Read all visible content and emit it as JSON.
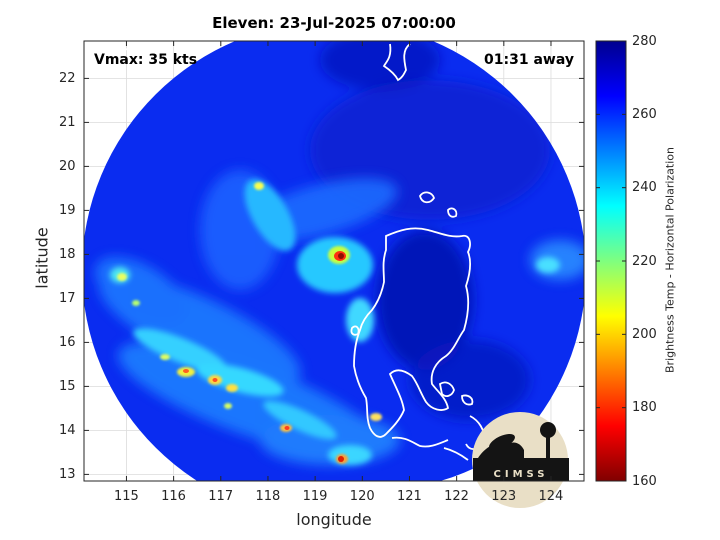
{
  "title": "Eleven: 23-Jul-2025 07:00:00",
  "vmax_label": "Vmax: 35 kts",
  "time_away_label": "01:31 away",
  "xlabel": "longitude",
  "ylabel": "latitude",
  "colorbar": {
    "label": "Brightness Temp - Horizontal Polarization",
    "ticks": [
      "160",
      "180",
      "200",
      "220",
      "240",
      "260",
      "280"
    ],
    "range": [
      160,
      280
    ],
    "colormap": "jet"
  },
  "x_ticks": [
    "115",
    "116",
    "117",
    "118",
    "119",
    "120",
    "121",
    "122",
    "123",
    "124"
  ],
  "y_ticks": [
    "13",
    "14",
    "15",
    "16",
    "17",
    "18",
    "19",
    "20",
    "21",
    "22"
  ],
  "logo_text": "CIMSS",
  "colors": {
    "background": "#0a2cf0",
    "ocean_pass_edge": "#ffffff",
    "coastline": "#ffffff"
  },
  "chart_data": {
    "type": "heatmap",
    "title": "Eleven: 23-Jul-2025 07:00:00",
    "xlabel": "longitude",
    "ylabel": "latitude",
    "xlim": [
      114.1,
      124.7
    ],
    "ylim": [
      12.85,
      22.85
    ],
    "value_label": "Brightness Temp - Horizontal Polarization",
    "value_range": [
      160,
      280
    ],
    "storm_center": {
      "lon": 119.4,
      "lat": 17.95,
      "min_temp": 172
    },
    "features": [
      {
        "name": "core",
        "lon": 119.4,
        "lat": 17.95,
        "temp": 172
      },
      {
        "name": "band-1",
        "lon": 115.9,
        "lat": 15.6,
        "temp": 200
      },
      {
        "name": "band-2",
        "lon": 116.8,
        "lat": 15.2,
        "temp": 195
      },
      {
        "name": "band-3",
        "lon": 118.6,
        "lat": 14.0,
        "temp": 200
      },
      {
        "name": "band-4",
        "lon": 119.2,
        "lat": 13.3,
        "temp": 185
      },
      {
        "name": "band-5",
        "lon": 120.2,
        "lat": 14.3,
        "temp": 205
      },
      {
        "name": "band-6",
        "lon": 117.8,
        "lat": 19.5,
        "temp": 215
      },
      {
        "name": "band-7",
        "lon": 114.8,
        "lat": 17.4,
        "temp": 215
      }
    ]
  }
}
